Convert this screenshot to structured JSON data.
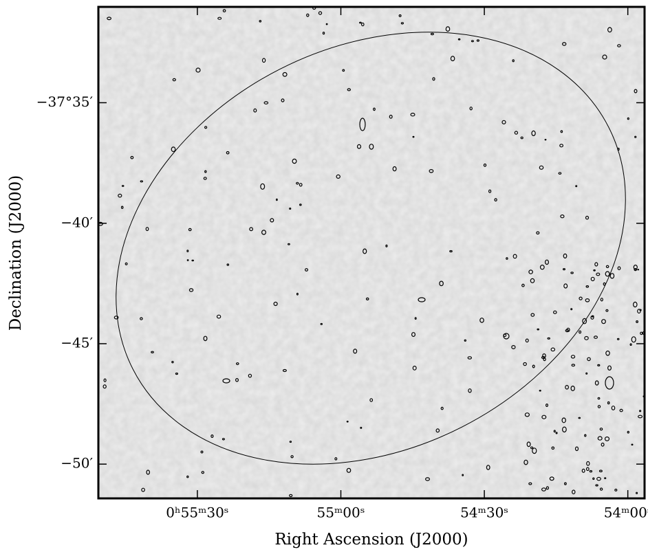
{
  "chart_data": {
    "type": "image",
    "xlabel": "Right Ascension (J2000)",
    "ylabel": "Declination (J2000)",
    "xlim": [
      3350.7,
      3236.5
    ],
    "xticks": [
      {
        "value": 3330,
        "label": "0ʰ55ᵐ30ˢ"
      },
      {
        "value": 3300,
        "label": "55ᵐ00ˢ"
      },
      {
        "value": 3270,
        "label": "54ᵐ30ˢ"
      },
      {
        "value": 3240,
        "label": "54ᵐ00ˢ"
      }
    ],
    "ylim": [
      -37.857,
      -37.517
    ],
    "yticks": [
      {
        "value": -37.5833,
        "label": "−37°35′"
      },
      {
        "value": -37.6667,
        "label": "−40′"
      },
      {
        "value": -37.75,
        "label": "−45′"
      },
      {
        "value": -37.8333,
        "label": "−50′"
      }
    ]
  }
}
